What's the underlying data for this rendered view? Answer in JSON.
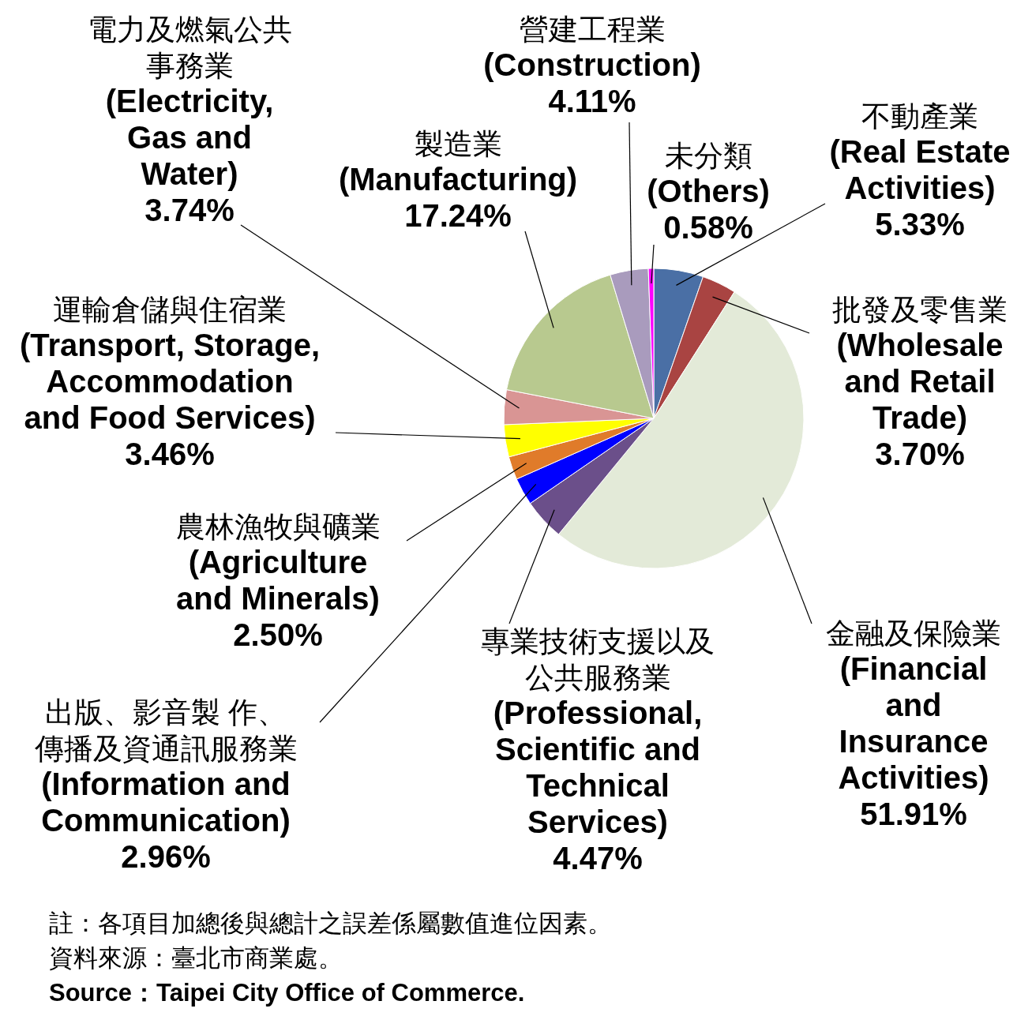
{
  "chart_data": {
    "type": "pie",
    "categories": [
      "不動產業\n(Real Estate\nActivities)",
      "批發及零售業\n(Wholesale\nand Retail\nTrade)",
      "金融及保險業\n(Financial\nand\nInsurance\nActivities)",
      "專業技術支援以及公共服務業\n(Professional,\nScientific and\nTechnical\nServices)",
      "出版、影音製 作、傳播及資通訊服務業\n(Information and\nCommunication)",
      "農林漁牧與礦業\n(Agriculture\nand Minerals)",
      "運輸倉儲與住宿業\n(Transport, Storage,\nAccommodation\nand Food Services)",
      "電力及燃氣公共事務業\n(Electricity,\nGas and\nWater)",
      "製造業\n(Manufacturing)",
      "營建工程業\n(Construction)",
      "未分類\n(Others)"
    ],
    "values": [
      5.33,
      3.7,
      51.91,
      4.47,
      2.96,
      2.5,
      3.46,
      3.74,
      17.24,
      4.11,
      0.58
    ],
    "value_labels": [
      "5.33%",
      "3.70%",
      "51.91%",
      "4.47%",
      "2.96%",
      "2.50%",
      "3.46%",
      "3.74%",
      "17.24%",
      "4.11%",
      "0.58%"
    ],
    "colors": [
      "#4a6fa5",
      "#a94442",
      "#e3ead8",
      "#6b4f8a",
      "#0000ff",
      "#e07b2a",
      "#ffff00",
      "#d99594",
      "#b8c98f",
      "#a99bbd",
      "#ff00ff"
    ],
    "annotations": [
      "註：各項目加總後與總計之誤差係屬數值進位因素。",
      "資料來源：臺北市商業處。",
      "Source：Taipei City Office of Commerce."
    ]
  }
}
